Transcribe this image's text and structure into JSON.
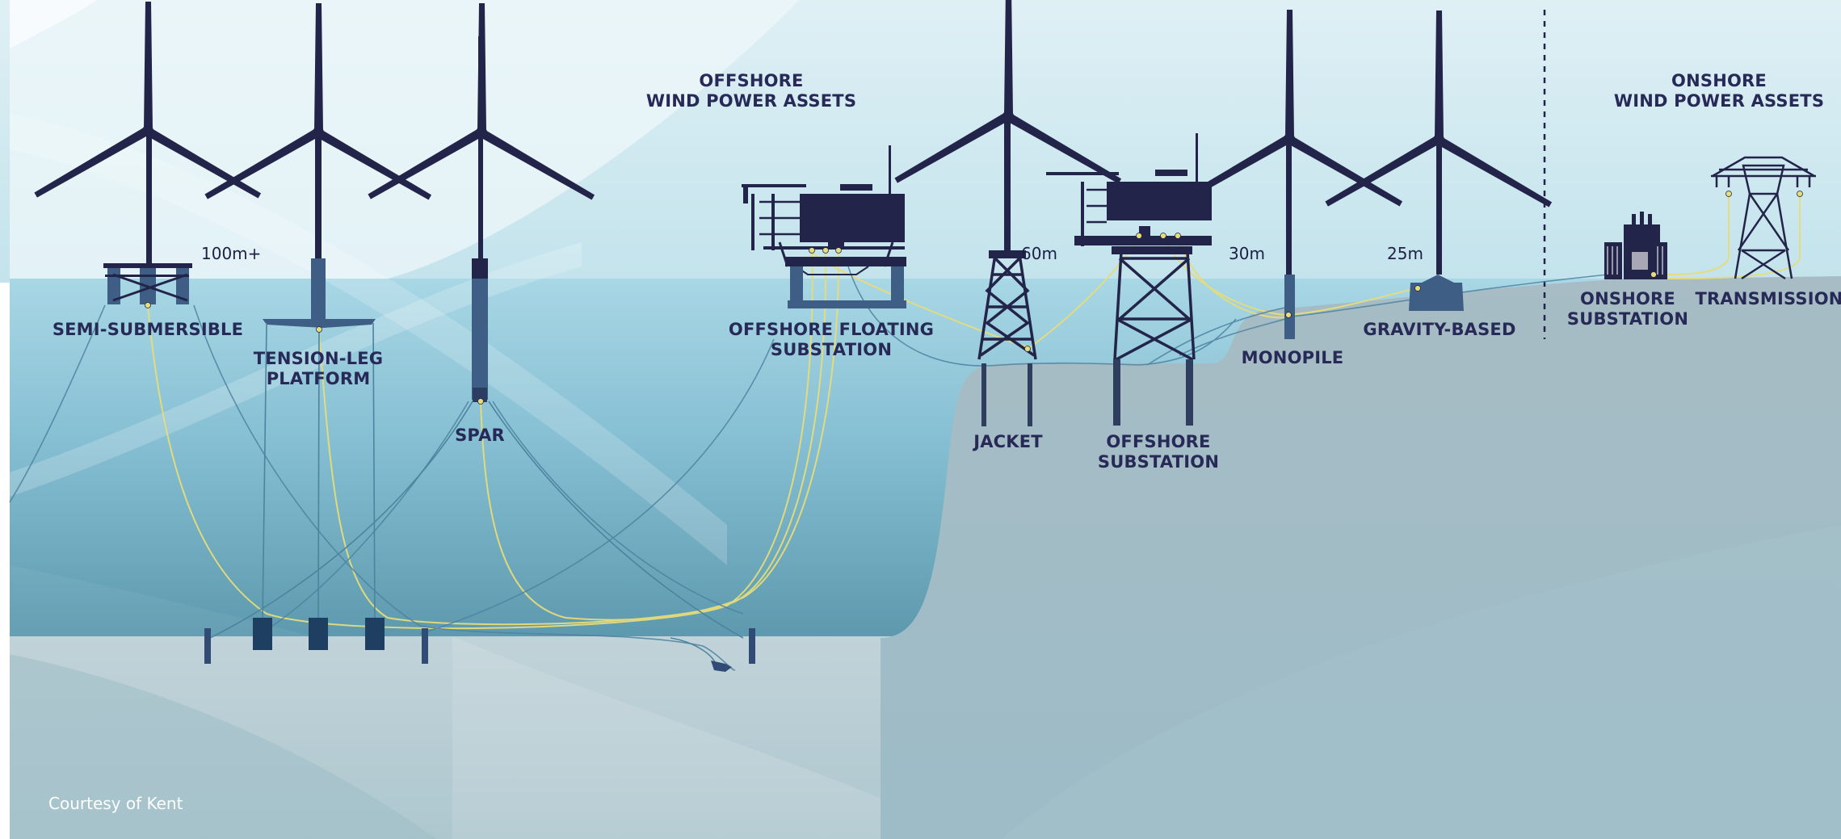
{
  "headers": {
    "offshore": [
      "OFFSHORE",
      "WIND POWER ASSETS"
    ],
    "onshore": [
      "ONSHORE",
      "WIND POWER ASSETS"
    ]
  },
  "assets": {
    "semi_submersible": [
      "SEMI-SUBMERSIBLE"
    ],
    "tension_leg_platform": [
      "TENSION-LEG",
      "PLATFORM"
    ],
    "spar": [
      "SPAR"
    ],
    "offshore_floating_substation": [
      "OFFSHORE FLOATING",
      "SUBSTATION"
    ],
    "jacket": [
      "JACKET"
    ],
    "offshore_substation": [
      "OFFSHORE",
      "SUBSTATION"
    ],
    "monopile": [
      "MONOPILE"
    ],
    "gravity_based": [
      "GRAVITY-BASED"
    ],
    "onshore_substation": [
      "ONSHORE",
      "SUBSTATION"
    ],
    "transmission": [
      "TRANSMISSION"
    ]
  },
  "depths": {
    "floating": "100m+",
    "jacket": "60m",
    "monopile": "30m",
    "gravity": "25m"
  },
  "credit": "Courtesy of Kent",
  "colors": {
    "structure": "#232449",
    "label": "#272a57",
    "cable_export": "#e6dc7a",
    "cable_array": "#4d83a0",
    "sea_surface": "#a9d7e4",
    "sea_deep": "#5e9cb2",
    "seabed": "#9fbcc5",
    "sky": "#e6f3f7"
  },
  "icons": [
    "wind-turbine-icon",
    "substation-platform-icon",
    "transmission-tower-icon",
    "cable-trencher-icon"
  ]
}
